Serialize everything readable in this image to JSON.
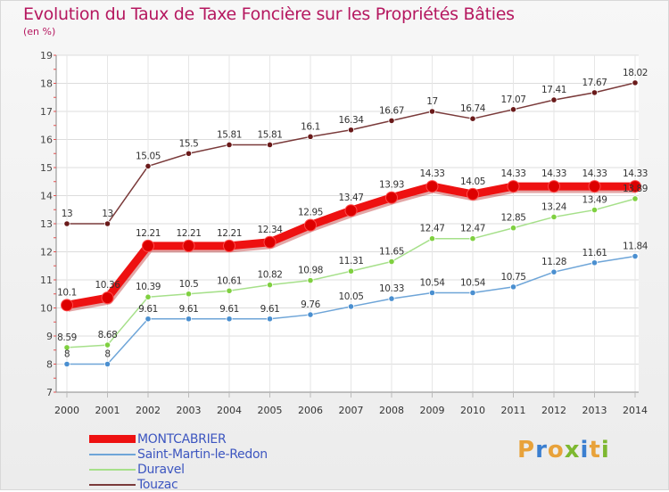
{
  "title": "Evolution du Taux de Taxe Foncière sur les Propriétés Bâties",
  "unit": "(en %)",
  "logo": {
    "text": "Proxiti",
    "colors": [
      "#e8a23a",
      "#3b7fd0",
      "#e8a23a",
      "#7db830",
      "#3b7fd0",
      "#e8a23a",
      "#7db830"
    ]
  },
  "chart_data": {
    "type": "line",
    "x": [
      "2000",
      "2001",
      "2002",
      "2003",
      "2004",
      "2005",
      "2006",
      "2007",
      "2008",
      "2009",
      "2010",
      "2011",
      "2012",
      "2013",
      "2014"
    ],
    "ylim": [
      7,
      19
    ],
    "yticks": [
      "7",
      "8",
      "9",
      "10",
      "11",
      "12",
      "13",
      "14",
      "15",
      "16",
      "17",
      "18",
      "19"
    ],
    "grid": true,
    "legend_position": "bottom-left",
    "series": [
      {
        "name": "MONTCABRIER",
        "color": "#ee1111",
        "marker": "#dd0000",
        "width": 9,
        "values": [
          10.1,
          10.36,
          12.21,
          12.21,
          12.21,
          12.34,
          12.95,
          13.47,
          13.93,
          14.33,
          14.05,
          14.33,
          14.33,
          14.33,
          14.33
        ],
        "labels": [
          "10.1",
          "10.36",
          "12.21",
          "12.21",
          "12.21",
          "12.34",
          "12.95",
          "13.47",
          "13.93",
          "14.33",
          "14.05",
          "14.33",
          "14.33",
          "14.33",
          "14.33"
        ]
      },
      {
        "name": "Saint-Martin-le-Redon",
        "color": "#6ea5d8",
        "marker": "#4a8fd0",
        "width": 1.5,
        "values": [
          8,
          8,
          9.61,
          9.61,
          9.61,
          9.61,
          9.76,
          10.05,
          10.33,
          10.54,
          10.54,
          10.75,
          11.28,
          11.61,
          11.84
        ],
        "labels": [
          "8",
          "8",
          "9.61",
          "9.61",
          "9.61",
          "9.61",
          "9.76",
          "10.05",
          "10.33",
          "10.54",
          "10.54",
          "10.75",
          "11.28",
          "11.61",
          "11.84"
        ]
      },
      {
        "name": "Duravel",
        "color": "#a6e08a",
        "marker": "#7fd040",
        "width": 1.5,
        "values": [
          8.59,
          8.68,
          10.39,
          10.5,
          10.61,
          10.82,
          10.98,
          11.31,
          11.65,
          12.47,
          12.47,
          12.85,
          13.24,
          13.49,
          13.89
        ],
        "labels": [
          "8.59",
          "8.68",
          "10.39",
          "10.5",
          "10.61",
          "10.82",
          "10.98",
          "11.31",
          "11.65",
          "12.47",
          "12.47",
          "12.85",
          "13.24",
          "13.49",
          "13.89"
        ]
      },
      {
        "name": "Touzac",
        "color": "#7a3a3a",
        "marker": "#6a1a1a",
        "width": 1.5,
        "values": [
          13,
          13,
          15.05,
          15.5,
          15.81,
          15.81,
          16.1,
          16.34,
          16.67,
          17,
          16.74,
          17.07,
          17.41,
          17.67,
          18.02
        ],
        "labels": [
          "13",
          "13",
          "15.05",
          "15.5",
          "15.81",
          "15.81",
          "16.1",
          "16.34",
          "16.67",
          "17",
          "16.74",
          "17.07",
          "17.41",
          "17.67",
          "18.02"
        ]
      }
    ]
  }
}
